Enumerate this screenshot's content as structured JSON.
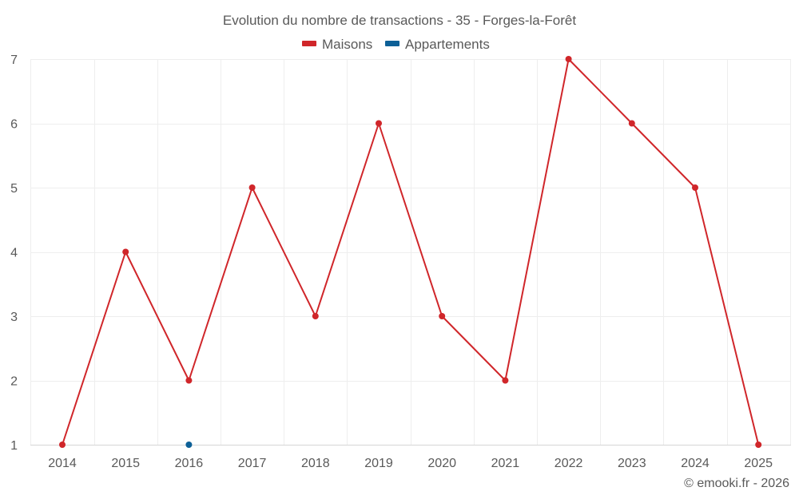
{
  "chart_data": {
    "type": "line",
    "title": "Evolution du nombre de transactions - 35 - Forges-la-Forêt",
    "x": [
      "2014",
      "2015",
      "2016",
      "2017",
      "2018",
      "2019",
      "2020",
      "2021",
      "2022",
      "2023",
      "2024",
      "2025"
    ],
    "ylim": [
      1,
      7
    ],
    "yticks": [
      "1",
      "2",
      "3",
      "4",
      "5",
      "6",
      "7"
    ],
    "grid": true,
    "legend": "top-center",
    "series": [
      {
        "name": "Maisons",
        "color": "#d0262a",
        "values": [
          1,
          4,
          2,
          5,
          3,
          6,
          3,
          2,
          7,
          6,
          5,
          1
        ]
      },
      {
        "name": "Appartements",
        "color": "#0d6097",
        "values": [
          null,
          null,
          1,
          null,
          null,
          null,
          null,
          null,
          null,
          null,
          null,
          null
        ]
      }
    ]
  },
  "credit": "© emooki.fr - 2026"
}
